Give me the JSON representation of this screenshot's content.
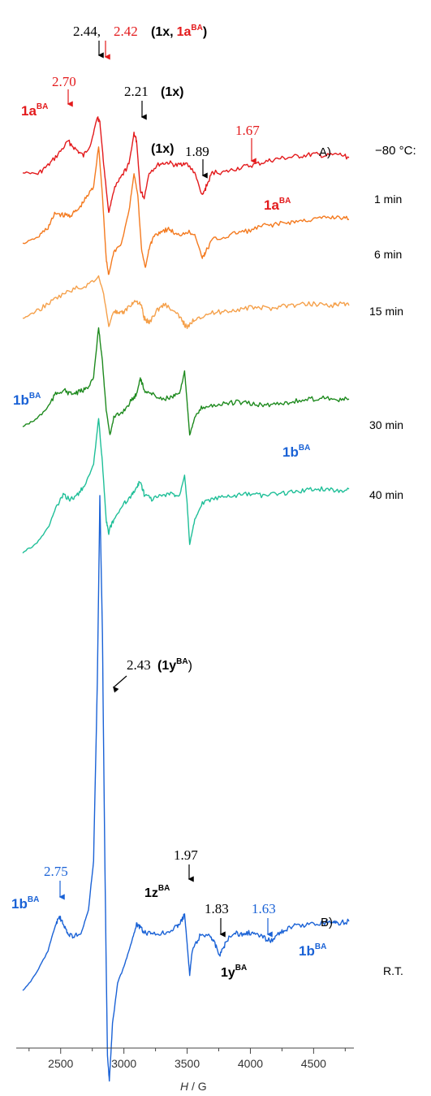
{
  "chart_data": {
    "type": "line",
    "title": "",
    "xlabel": "H / G",
    "xlabel_italic": "H",
    "xlabel_unit": " / G",
    "xlim": [
      2200,
      4780
    ],
    "x_ticks": [
      2500,
      3000,
      3500,
      4000,
      4500
    ],
    "temperature_label": "−80 °C:",
    "panel_labels": [
      "A)",
      "B)"
    ],
    "series": [
      {
        "name": "1 min",
        "color": "#e31a1c",
        "points": [
          [
            2200,
            0
          ],
          [
            2320,
            -2
          ],
          [
            2400,
            8
          ],
          [
            2480,
            22
          ],
          [
            2560,
            38
          ],
          [
            2620,
            28
          ],
          [
            2680,
            20
          ],
          [
            2740,
            36
          ],
          [
            2790,
            68
          ],
          [
            2810,
            62
          ],
          [
            2840,
            10
          ],
          [
            2880,
            -50
          ],
          [
            2920,
            -22
          ],
          [
            2980,
            -6
          ],
          [
            3040,
            10
          ],
          [
            3080,
            48
          ],
          [
            3100,
            38
          ],
          [
            3130,
            -22
          ],
          [
            3160,
            -32
          ],
          [
            3200,
            0
          ],
          [
            3280,
            10
          ],
          [
            3350,
            12
          ],
          [
            3420,
            8
          ],
          [
            3480,
            12
          ],
          [
            3560,
            0
          ],
          [
            3620,
            -30
          ],
          [
            3650,
            -18
          ],
          [
            3700,
            0
          ],
          [
            3800,
            0
          ],
          [
            3900,
            5
          ],
          [
            4000,
            8
          ],
          [
            4100,
            12
          ],
          [
            4200,
            16
          ],
          [
            4300,
            18
          ],
          [
            4400,
            20
          ],
          [
            4500,
            22
          ],
          [
            4600,
            20
          ],
          [
            4700,
            22
          ],
          [
            4780,
            18
          ]
        ]
      },
      {
        "name": "6 min",
        "color": "#f47a1f",
        "points": [
          [
            2200,
            0
          ],
          [
            2320,
            8
          ],
          [
            2400,
            20
          ],
          [
            2460,
            38
          ],
          [
            2520,
            35
          ],
          [
            2580,
            35
          ],
          [
            2640,
            42
          ],
          [
            2700,
            56
          ],
          [
            2760,
            70
          ],
          [
            2800,
            120
          ],
          [
            2830,
            60
          ],
          [
            2860,
            -20
          ],
          [
            2880,
            -38
          ],
          [
            2920,
            -10
          ],
          [
            2980,
            0
          ],
          [
            3040,
            40
          ],
          [
            3080,
            86
          ],
          [
            3110,
            60
          ],
          [
            3140,
            -8
          ],
          [
            3170,
            -30
          ],
          [
            3200,
            -5
          ],
          [
            3240,
            10
          ],
          [
            3300,
            16
          ],
          [
            3360,
            18
          ],
          [
            3420,
            10
          ],
          [
            3500,
            15
          ],
          [
            3560,
            12
          ],
          [
            3620,
            -18
          ],
          [
            3640,
            -12
          ],
          [
            3700,
            5
          ],
          [
            3800,
            8
          ],
          [
            3900,
            14
          ],
          [
            4000,
            16
          ],
          [
            4100,
            22
          ],
          [
            4200,
            24
          ],
          [
            4300,
            26
          ],
          [
            4400,
            28
          ],
          [
            4500,
            30
          ],
          [
            4600,
            32
          ],
          [
            4700,
            33
          ],
          [
            4780,
            30
          ]
        ]
      },
      {
        "name": "15 min",
        "color": "#f5a04a",
        "points": [
          [
            2200,
            0
          ],
          [
            2300,
            8
          ],
          [
            2400,
            18
          ],
          [
            2500,
            28
          ],
          [
            2600,
            36
          ],
          [
            2700,
            40
          ],
          [
            2800,
            52
          ],
          [
            2840,
            30
          ],
          [
            2880,
            -10
          ],
          [
            2920,
            10
          ],
          [
            2960,
            5
          ],
          [
            3000,
            8
          ],
          [
            3060,
            18
          ],
          [
            3100,
            22
          ],
          [
            3140,
            15
          ],
          [
            3160,
            0
          ],
          [
            3200,
            -5
          ],
          [
            3260,
            10
          ],
          [
            3320,
            18
          ],
          [
            3400,
            8
          ],
          [
            3460,
            -2
          ],
          [
            3500,
            -12
          ],
          [
            3560,
            0
          ],
          [
            3650,
            5
          ],
          [
            3750,
            8
          ],
          [
            3850,
            10
          ],
          [
            3950,
            12
          ],
          [
            4050,
            14
          ],
          [
            4150,
            12
          ],
          [
            4250,
            16
          ],
          [
            4350,
            16
          ],
          [
            4450,
            18
          ],
          [
            4550,
            18
          ],
          [
            4650,
            16
          ],
          [
            4700,
            18
          ],
          [
            4780,
            16
          ]
        ]
      },
      {
        "name": "30 min",
        "color": "#1e8a1e",
        "points": [
          [
            2200,
            0
          ],
          [
            2300,
            8
          ],
          [
            2400,
            24
          ],
          [
            2460,
            40
          ],
          [
            2520,
            45
          ],
          [
            2580,
            40
          ],
          [
            2640,
            42
          ],
          [
            2700,
            46
          ],
          [
            2760,
            60
          ],
          [
            2800,
            122
          ],
          [
            2830,
            80
          ],
          [
            2860,
            20
          ],
          [
            2890,
            -10
          ],
          [
            2920,
            10
          ],
          [
            3000,
            20
          ],
          [
            3060,
            32
          ],
          [
            3100,
            40
          ],
          [
            3130,
            60
          ],
          [
            3160,
            45
          ],
          [
            3220,
            40
          ],
          [
            3300,
            34
          ],
          [
            3380,
            36
          ],
          [
            3440,
            40
          ],
          [
            3480,
            68
          ],
          [
            3500,
            30
          ],
          [
            3520,
            -10
          ],
          [
            3560,
            10
          ],
          [
            3620,
            24
          ],
          [
            3700,
            26
          ],
          [
            3800,
            28
          ],
          [
            3900,
            30
          ],
          [
            4000,
            28
          ],
          [
            4100,
            26
          ],
          [
            4200,
            28
          ],
          [
            4300,
            30
          ],
          [
            4400,
            32
          ],
          [
            4500,
            34
          ],
          [
            4600,
            36
          ],
          [
            4700,
            32
          ],
          [
            4780,
            34
          ]
        ]
      },
      {
        "name": "40 min",
        "color": "#1fbf98",
        "points": [
          [
            2200,
            0
          ],
          [
            2300,
            10
          ],
          [
            2400,
            30
          ],
          [
            2460,
            54
          ],
          [
            2520,
            70
          ],
          [
            2580,
            65
          ],
          [
            2640,
            72
          ],
          [
            2700,
            86
          ],
          [
            2760,
            108
          ],
          [
            2800,
            165
          ],
          [
            2830,
            110
          ],
          [
            2860,
            40
          ],
          [
            2880,
            25
          ],
          [
            2920,
            40
          ],
          [
            3000,
            60
          ],
          [
            3060,
            70
          ],
          [
            3100,
            80
          ],
          [
            3130,
            88
          ],
          [
            3160,
            72
          ],
          [
            3220,
            66
          ],
          [
            3300,
            70
          ],
          [
            3380,
            72
          ],
          [
            3440,
            70
          ],
          [
            3480,
            96
          ],
          [
            3500,
            60
          ],
          [
            3520,
            10
          ],
          [
            3560,
            40
          ],
          [
            3620,
            60
          ],
          [
            3700,
            66
          ],
          [
            3800,
            68
          ],
          [
            3900,
            70
          ],
          [
            4000,
            72
          ],
          [
            4100,
            70
          ],
          [
            4200,
            72
          ],
          [
            4300,
            74
          ],
          [
            4400,
            76
          ],
          [
            4500,
            78
          ],
          [
            4600,
            78
          ],
          [
            4700,
            76
          ],
          [
            4780,
            78
          ]
        ]
      },
      {
        "name": "R.T.",
        "color": "#1a62d6",
        "points": [
          [
            2200,
            0
          ],
          [
            2300,
            20
          ],
          [
            2400,
            50
          ],
          [
            2460,
            82
          ],
          [
            2490,
            92
          ],
          [
            2520,
            82
          ],
          [
            2560,
            70
          ],
          [
            2600,
            68
          ],
          [
            2660,
            70
          ],
          [
            2720,
            100
          ],
          [
            2760,
            160
          ],
          [
            2790,
            380
          ],
          [
            2810,
            610
          ],
          [
            2830,
            440
          ],
          [
            2850,
            150
          ],
          [
            2870,
            -80
          ],
          [
            2885,
            -110
          ],
          [
            2910,
            -40
          ],
          [
            2950,
            10
          ],
          [
            3000,
            30
          ],
          [
            3060,
            60
          ],
          [
            3100,
            82
          ],
          [
            3130,
            78
          ],
          [
            3160,
            72
          ],
          [
            3220,
            70
          ],
          [
            3300,
            72
          ],
          [
            3360,
            74
          ],
          [
            3420,
            80
          ],
          [
            3460,
            88
          ],
          [
            3480,
            95
          ],
          [
            3500,
            58
          ],
          [
            3520,
            20
          ],
          [
            3540,
            50
          ],
          [
            3600,
            68
          ],
          [
            3680,
            70
          ],
          [
            3720,
            58
          ],
          [
            3760,
            44
          ],
          [
            3800,
            58
          ],
          [
            3860,
            72
          ],
          [
            3920,
            70
          ],
          [
            3980,
            72
          ],
          [
            4040,
            70
          ],
          [
            4100,
            66
          ],
          [
            4160,
            62
          ],
          [
            4220,
            70
          ],
          [
            4280,
            76
          ],
          [
            4350,
            80
          ],
          [
            4450,
            82
          ],
          [
            4550,
            84
          ],
          [
            4650,
            86
          ],
          [
            4700,
            84
          ],
          [
            4780,
            86
          ]
        ]
      }
    ],
    "annotations": [
      {
        "name": "a-244",
        "text": "2.44,",
        "color": "#000000"
      },
      {
        "name": "a-242",
        "text": "2.42",
        "color": "#e31a1c"
      },
      {
        "name": "a-1x-open",
        "text": "(",
        "color": "#000000"
      },
      {
        "name": "a-1x-bold",
        "text": "1x",
        "color": "#000000"
      },
      {
        "name": "a-1x-comma",
        "text": ",",
        "color": "#000000"
      },
      {
        "name": "a-1a-bold",
        "text": "1a",
        "color": "#e31a1c"
      },
      {
        "name": "a-1a-sup",
        "text": "BA",
        "color": "#e31a1c"
      },
      {
        "name": "a-1x-close",
        "text": ")",
        "color": "#000000"
      },
      {
        "name": "a-270",
        "text": "2.70",
        "color": "#e31a1c"
      },
      {
        "name": "a-221",
        "text": "2.21",
        "color": "#000000"
      },
      {
        "name": "a-221-label",
        "text": "(1x)",
        "color": "#000000"
      },
      {
        "name": "a-1x-189",
        "text": "(1x)",
        "color": "#000000"
      },
      {
        "name": "a-189",
        "text": "1.89",
        "color": "#000000"
      },
      {
        "name": "a-167",
        "text": "1.67",
        "color": "#e31a1c"
      },
      {
        "name": "a-243",
        "text": "2.43",
        "color": "#000000"
      },
      {
        "name": "a-243-label",
        "text": "(1y",
        "color": "#000000"
      },
      {
        "name": "a-243-sup",
        "text": "BA",
        "color": "#000000"
      },
      {
        "name": "a-243-close",
        "text": ")",
        "color": "#000000"
      },
      {
        "name": "a-275",
        "text": "2.75",
        "color": "#1a62d6"
      },
      {
        "name": "a-197",
        "text": "1.97",
        "color": "#000000"
      },
      {
        "name": "a-183",
        "text": "1.83",
        "color": "#000000"
      },
      {
        "name": "a-163",
        "text": "1.63",
        "color": "#1a62d6"
      }
    ],
    "species_labels": [
      {
        "name": "s-1aba-a",
        "base": "1a",
        "sup": "BA",
        "color": "#e31a1c"
      },
      {
        "name": "s-1aba-b",
        "base": "1a",
        "sup": "BA",
        "color": "#e31a1c"
      },
      {
        "name": "s-1bba-a",
        "base": "1b",
        "sup": "BA",
        "color": "#1a62d6"
      },
      {
        "name": "s-1bba-b",
        "base": "1b",
        "sup": "BA",
        "color": "#1a62d6"
      },
      {
        "name": "s-1bba-c",
        "base": "1b",
        "sup": "BA",
        "color": "#1a62d6"
      },
      {
        "name": "s-1bba-d",
        "base": "1b",
        "sup": "BA",
        "color": "#1a62d6"
      },
      {
        "name": "s-1zba",
        "base": "1z",
        "sup": "BA",
        "color": "#000000"
      },
      {
        "name": "s-1yba",
        "base": "1y",
        "sup": "BA",
        "color": "#000000"
      }
    ]
  }
}
